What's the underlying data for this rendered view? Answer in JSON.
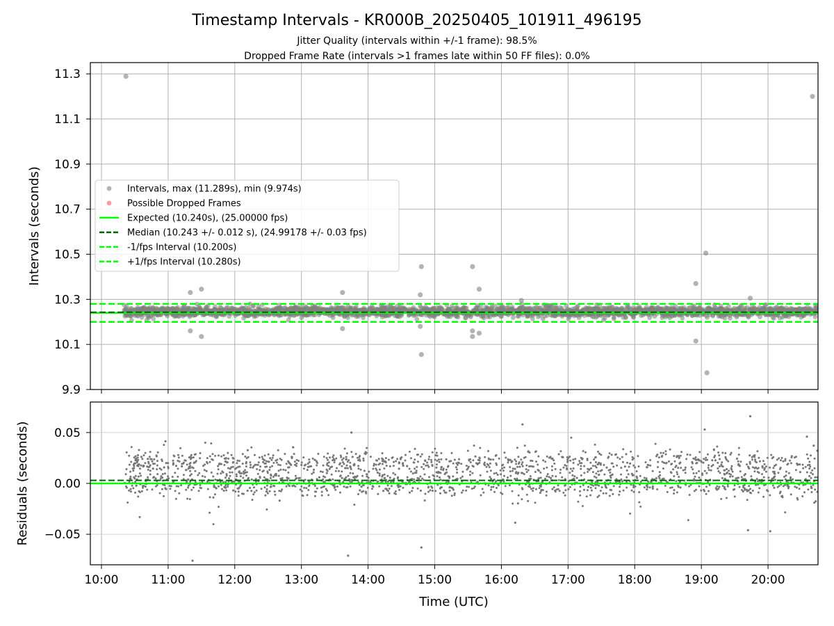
{
  "title": "Timestamp Intervals - KR000B_20250405_101911_496195",
  "subtitle_lines": [
    "Jitter Quality (intervals within +/-1 frame): 98.5%",
    "Dropped Frame Rate (intervals >1 frames late within 50 FF files): 0.0%"
  ],
  "colors": {
    "points": "#808080",
    "dropped": "#ff5a5a",
    "expected": "#00ff00",
    "median": "#006400",
    "bounds": "#00ff00",
    "grid": "#b0b0b0"
  },
  "chart_data": [
    {
      "type": "scatter",
      "ylabel": "Intervals (seconds)",
      "xlim": [
        "09:50",
        "20:45"
      ],
      "ylim": [
        9.9,
        11.35
      ],
      "yticks": [
        "9.9",
        "10.1",
        "10.3",
        "10.5",
        "10.7",
        "10.9",
        "11.1",
        "11.3"
      ],
      "grid": true,
      "legend_placement": "center-left",
      "legend": [
        {
          "label": "Intervals, max (11.289s), min (9.974s)",
          "marker": "point",
          "color": "#808080"
        },
        {
          "label": "Possible Dropped Frames",
          "marker": "point",
          "color": "#ff5a5a"
        },
        {
          "label": "Expected (10.240s), (25.00000 fps)",
          "marker": "solid",
          "color": "#00ff00"
        },
        {
          "label": "Median (10.243 +/- 0.012 s), (24.99178 +/- 0.03 fps)",
          "marker": "dashed",
          "color": "#006400"
        },
        {
          "label": "-1/fps Interval (10.200s)",
          "marker": "dashed",
          "color": "#00ff00"
        },
        {
          "label": "+1/fps Interval (10.280s)",
          "marker": "dashed",
          "color": "#00ff00"
        }
      ],
      "lines": {
        "expected": 10.24,
        "median": 10.243,
        "minus_one": 10.2,
        "plus_one": 10.28
      },
      "data_range": [
        "10:20",
        "20:45"
      ],
      "band": {
        "center": 10.245,
        "spread": 0.02
      },
      "outliers": [
        {
          "x": "10:22",
          "y": 11.289
        },
        {
          "x": "20:40",
          "y": 11.2
        },
        {
          "x": "11:20",
          "y": 10.33
        },
        {
          "x": "11:30",
          "y": 10.345
        },
        {
          "x": "11:20",
          "y": 10.16
        },
        {
          "x": "11:30",
          "y": 10.135
        },
        {
          "x": "13:37",
          "y": 10.33
        },
        {
          "x": "13:37",
          "y": 10.17
        },
        {
          "x": "14:48",
          "y": 10.445
        },
        {
          "x": "14:47",
          "y": 10.32
        },
        {
          "x": "14:47",
          "y": 10.18
        },
        {
          "x": "14:48",
          "y": 10.055
        },
        {
          "x": "15:34",
          "y": 10.445
        },
        {
          "x": "15:40",
          "y": 10.345
        },
        {
          "x": "15:34",
          "y": 10.16
        },
        {
          "x": "15:34",
          "y": 10.135
        },
        {
          "x": "15:40",
          "y": 10.15
        },
        {
          "x": "18:55",
          "y": 10.37
        },
        {
          "x": "18:55",
          "y": 10.115
        },
        {
          "x": "19:04",
          "y": 10.505
        },
        {
          "x": "19:05",
          "y": 9.974
        },
        {
          "x": "19:44",
          "y": 10.305
        },
        {
          "x": "16:18",
          "y": 10.295
        }
      ]
    },
    {
      "type": "scatter",
      "ylabel": "Residuals (seconds)",
      "xlabel": "Time (UTC)",
      "xlim": [
        "09:50",
        "20:45"
      ],
      "ylim": [
        -0.08,
        0.08
      ],
      "yticks": [
        "−0.05",
        "0.00",
        "0.05"
      ],
      "xticks": [
        "10:00",
        "11:00",
        "12:00",
        "13:00",
        "14:00",
        "15:00",
        "16:00",
        "17:00",
        "18:00",
        "19:00",
        "20:00"
      ],
      "grid": true,
      "lines": {
        "expected": 0.0,
        "median": 0.003
      },
      "data_range": [
        "10:20",
        "20:45"
      ],
      "clusters": [
        0.0,
        0.02
      ],
      "outliers": [
        {
          "x": "11:22",
          "y": -0.076
        },
        {
          "x": "13:42",
          "y": -0.071
        },
        {
          "x": "14:48",
          "y": -0.063
        },
        {
          "x": "16:19",
          "y": 0.058
        },
        {
          "x": "19:44",
          "y": 0.066
        },
        {
          "x": "19:03",
          "y": 0.053
        },
        {
          "x": "13:45",
          "y": 0.05
        },
        {
          "x": "19:42",
          "y": -0.046
        },
        {
          "x": "20:02",
          "y": -0.047
        },
        {
          "x": "20:35",
          "y": 0.046
        }
      ]
    }
  ]
}
